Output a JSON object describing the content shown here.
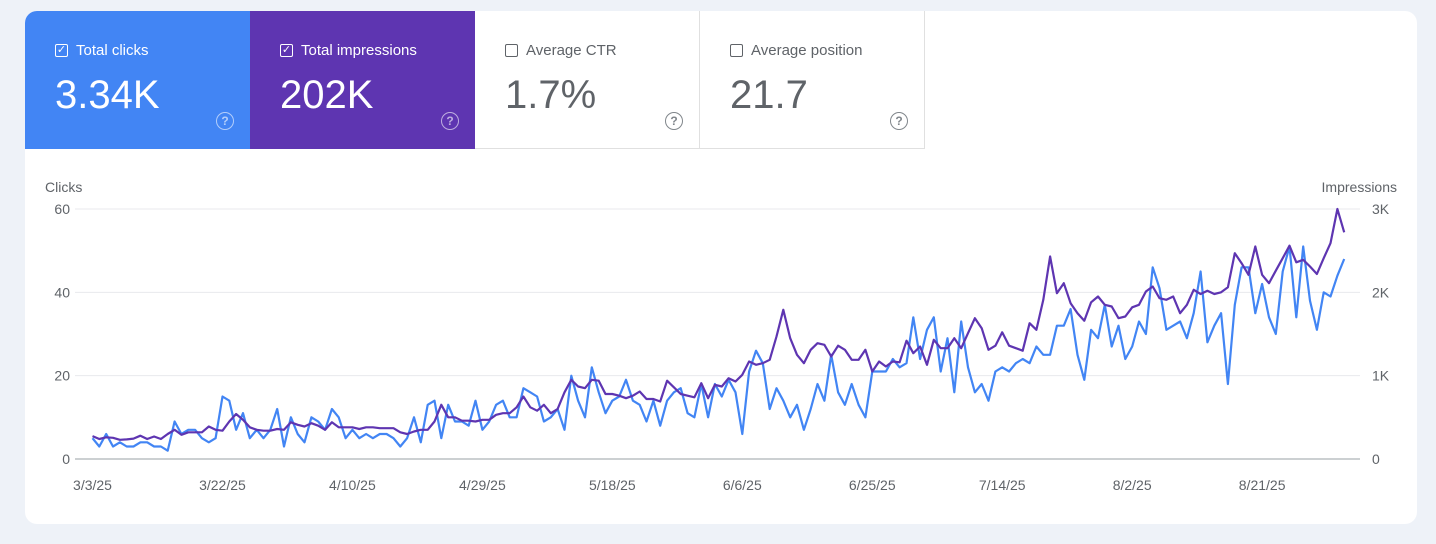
{
  "metrics": [
    {
      "label": "Total clicks",
      "value": "3.34K",
      "checked": true,
      "color": "#4285f4"
    },
    {
      "label": "Total impressions",
      "value": "202K",
      "checked": true,
      "color": "#5e35b1"
    },
    {
      "label": "Average CTR",
      "value": "1.7%",
      "checked": false
    },
    {
      "label": "Average position",
      "value": "21.7",
      "checked": false
    }
  ],
  "icons": {
    "checkbox_checked": "✓",
    "help": "?"
  },
  "chart_data": {
    "type": "line",
    "y_left_label": "Clicks",
    "y_right_label": "Impressions",
    "y_left_ticks": [
      "0",
      "20",
      "40",
      "60"
    ],
    "y_left_lim": [
      0,
      60
    ],
    "y_right_ticks": [
      "0",
      "1K",
      "2K",
      "3K"
    ],
    "y_right_lim": [
      0,
      3000
    ],
    "x_ticks": [
      "3/3/25",
      "3/22/25",
      "4/10/25",
      "4/29/25",
      "5/18/25",
      "6/6/25",
      "6/25/25",
      "7/14/25",
      "8/2/25",
      "8/21/25"
    ],
    "grid": true,
    "series": [
      {
        "name": "Clicks",
        "axis": "left",
        "color": "#4285f4",
        "values": [
          5,
          3,
          6,
          3,
          4,
          3,
          3,
          4,
          4,
          3,
          3,
          2,
          9,
          6,
          7,
          7,
          5,
          4,
          5,
          15,
          14,
          7,
          11,
          5,
          7,
          5,
          7,
          12,
          3,
          10,
          6,
          4,
          10,
          9,
          7,
          12,
          10,
          5,
          7,
          5,
          6,
          5,
          6,
          6,
          5,
          3,
          5,
          10,
          4,
          13,
          14,
          5,
          13,
          9,
          9,
          8,
          14,
          7,
          9,
          13,
          14,
          10,
          10,
          17,
          16,
          15,
          9,
          10,
          12,
          7,
          20,
          14,
          10,
          22,
          16,
          11,
          14,
          15,
          19,
          14,
          13,
          9,
          14,
          8,
          14,
          16,
          17,
          11,
          10,
          18,
          10,
          18,
          15,
          19,
          16,
          6,
          21,
          26,
          23,
          12,
          17,
          14,
          10,
          13,
          7,
          12,
          18,
          14,
          25,
          16,
          13,
          18,
          13,
          10,
          21,
          21,
          21,
          24,
          22,
          23,
          34,
          24,
          31,
          34,
          21,
          29,
          16,
          33,
          22,
          16,
          18,
          14,
          21,
          22,
          21,
          23,
          24,
          23,
          27,
          25,
          25,
          32,
          32,
          36,
          25,
          19,
          31,
          29,
          37,
          27,
          32,
          24,
          27,
          33,
          30,
          46,
          41,
          31,
          32,
          33,
          29,
          35,
          45,
          28,
          32,
          35,
          18,
          37,
          46,
          46,
          35,
          42,
          34,
          30,
          45,
          51,
          34,
          51,
          38,
          31,
          40,
          39,
          44,
          48
        ]
      },
      {
        "name": "Impressions",
        "axis": "right",
        "color": "#5e35b1",
        "values": [
          275,
          240,
          260,
          255,
          230,
          235,
          245,
          280,
          240,
          270,
          240,
          300,
          350,
          290,
          320,
          320,
          320,
          390,
          350,
          340,
          450,
          540,
          470,
          380,
          350,
          340,
          340,
          360,
          350,
          440,
          410,
          390,
          430,
          400,
          350,
          440,
          380,
          380,
          380,
          360,
          380,
          380,
          370,
          370,
          370,
          320,
          300,
          330,
          350,
          350,
          450,
          650,
          500,
          500,
          460,
          460,
          450,
          470,
          470,
          530,
          550,
          550,
          620,
          750,
          620,
          580,
          650,
          550,
          600,
          800,
          950,
          870,
          850,
          950,
          940,
          780,
          780,
          760,
          730,
          760,
          810,
          720,
          720,
          690,
          940,
          860,
          780,
          760,
          740,
          910,
          730,
          890,
          870,
          970,
          930,
          1010,
          1170,
          1130,
          1150,
          1190,
          1470,
          1790,
          1450,
          1250,
          1150,
          1310,
          1390,
          1370,
          1230,
          1360,
          1310,
          1190,
          1190,
          1310,
          1050,
          1170,
          1110,
          1170,
          1160,
          1420,
          1270,
          1350,
          1130,
          1430,
          1330,
          1330,
          1450,
          1330,
          1510,
          1690,
          1570,
          1310,
          1360,
          1520,
          1360,
          1330,
          1300,
          1630,
          1550,
          1910,
          2430,
          1990,
          2110,
          1870,
          1750,
          1660,
          1880,
          1950,
          1850,
          1830,
          1690,
          1710,
          1820,
          1850,
          2010,
          2070,
          1930,
          1910,
          1950,
          1750,
          1850,
          2030,
          1980,
          2020,
          1980,
          2000,
          2060,
          2470,
          2350,
          2210,
          2550,
          2210,
          2110,
          2260,
          2410,
          2560,
          2360,
          2390,
          2310,
          2220,
          2410,
          2590,
          3000,
          2720
        ]
      }
    ]
  }
}
